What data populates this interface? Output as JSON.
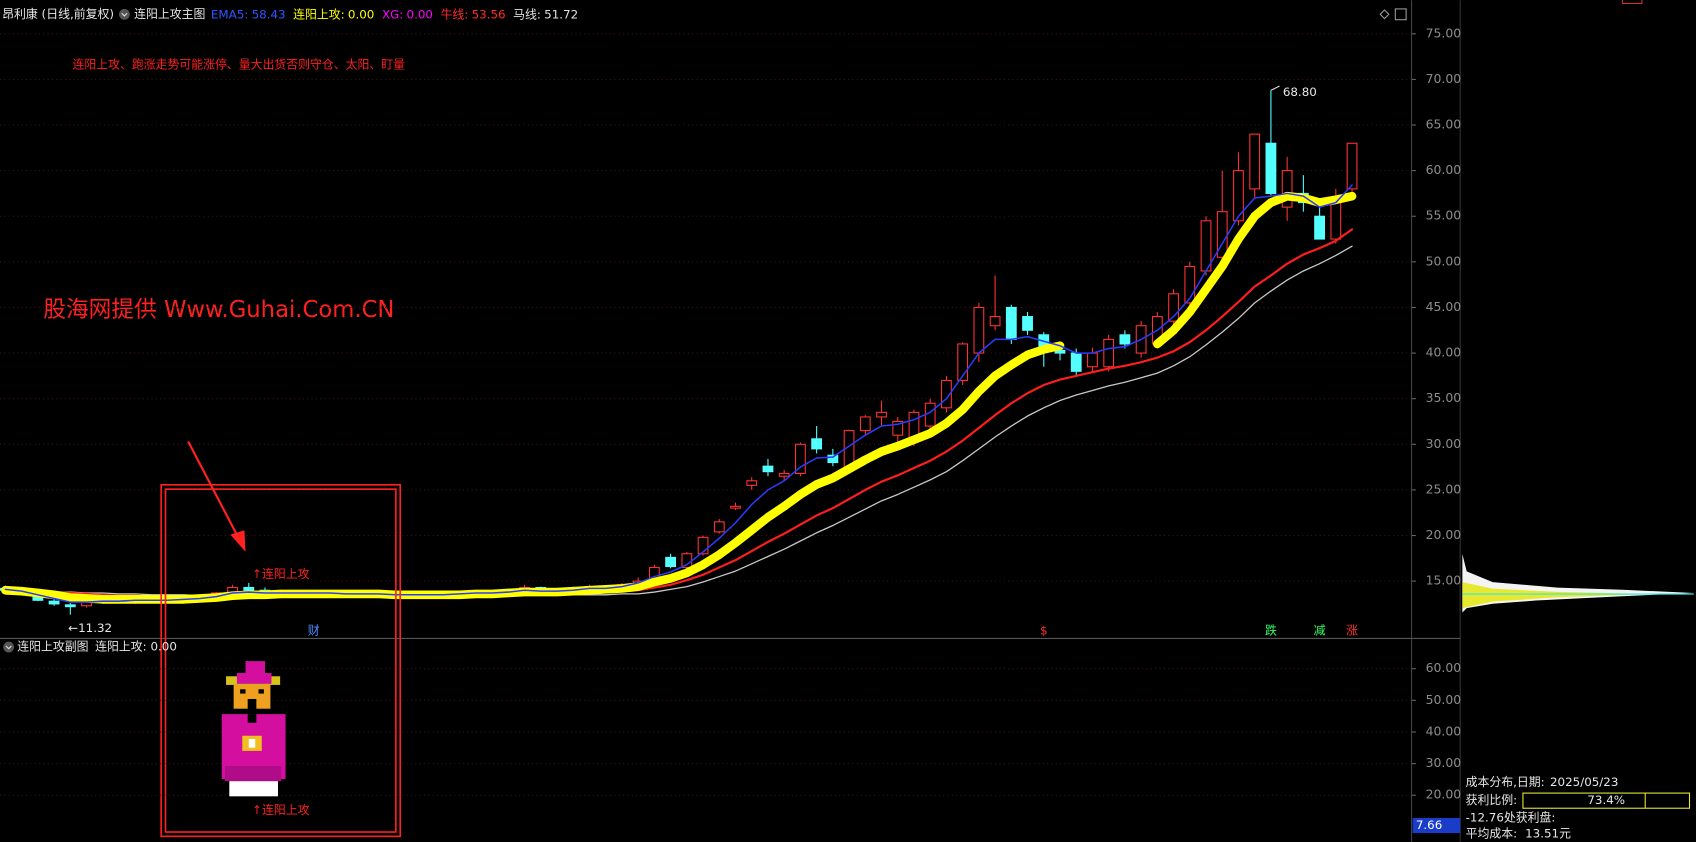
{
  "header": {
    "stock": "昂利康 (日线,前复权)",
    "indicator": "连阳上攻主图"
  },
  "chart_data": {
    "type": "candlestick",
    "readouts": [
      {
        "label": "EMA5:",
        "value": "58.43",
        "color": "#2f55ff"
      },
      {
        "label": "连阳上攻:",
        "value": "0.00",
        "color": "#ffff00"
      },
      {
        "label": "XG:",
        "value": "0.00",
        "color": "#ff00ff"
      },
      {
        "label": "牛线:",
        "value": "53.56",
        "color": "#ff2a2a"
      },
      {
        "label": "马线:",
        "value": "51.72",
        "color": "#e0e0e0"
      }
    ],
    "note": "连阳上攻、跑涨走势可能涨停、量大出货否则守仓、太阳、盯量",
    "watermark": "股海网提供 Www.Guhai.Com.CN",
    "signal_text": "↑连阳上攻",
    "high_label": "68.80",
    "low_label": "←11.32",
    "up_color": "#ff3232",
    "down_color": "#54ffff",
    "open": [
      14.2,
      14.0,
      13.5,
      12.8,
      12.4,
      12.3,
      12.7,
      12.9,
      12.8,
      13.0,
      12.9,
      12.8,
      13.1,
      13.2,
      13.7,
      14.3,
      14.0,
      13.6,
      13.8,
      13.7,
      13.6,
      13.7,
      13.5,
      13.6,
      13.5,
      13.4,
      13.5,
      13.6,
      13.5,
      13.7,
      13.8,
      13.6,
      14.0,
      14.3,
      13.8,
      14.0,
      14.2,
      14.4,
      14.3,
      14.6,
      15.0,
      17.6,
      16.5,
      18.0,
      20.4,
      23.0,
      25.5,
      27.6,
      26.5,
      26.8,
      30.6,
      28.8,
      27.5,
      31.5,
      33.0,
      31.0,
      30.5,
      32.0,
      34.0,
      37.0,
      40.0,
      43.0,
      45.0,
      44.0,
      42.0,
      40.3,
      40.0,
      38.5,
      38.5,
      42.0,
      40.0,
      41.0,
      43.5,
      45.5,
      49.0,
      50.5,
      54.5,
      58.0,
      63.0,
      56.0,
      57.5,
      55.0,
      52.5,
      58.0
    ],
    "high": [
      14.5,
      14.3,
      13.6,
      13.0,
      12.6,
      12.9,
      13.1,
      13.2,
      13.1,
      13.3,
      13.1,
      13.2,
      13.4,
      13.8,
      14.6,
      14.8,
      14.3,
      14.0,
      14.0,
      13.9,
      13.9,
      13.8,
      13.8,
      13.7,
      13.6,
      13.7,
      13.8,
      13.7,
      13.9,
      14.0,
      13.9,
      14.2,
      14.6,
      14.4,
      14.2,
      14.4,
      14.6,
      14.5,
      14.8,
      15.4,
      16.8,
      18.0,
      18.2,
      20.0,
      21.8,
      23.6,
      26.4,
      28.4,
      27.2,
      30.2,
      32.0,
      29.5,
      31.6,
      33.2,
      34.8,
      33.0,
      33.8,
      35.0,
      37.5,
      41.2,
      45.5,
      48.5,
      45.3,
      44.5,
      42.3,
      41.0,
      40.5,
      40.6,
      42.0,
      42.5,
      43.5,
      44.5,
      47.0,
      50.0,
      55.0,
      60.0,
      62.0,
      64.0,
      68.8,
      61.5,
      59.5,
      56.0,
      58.0,
      63.0
    ],
    "low": [
      13.8,
      13.5,
      12.8,
      12.3,
      11.32,
      12.1,
      12.5,
      12.6,
      12.5,
      12.8,
      12.6,
      12.6,
      12.9,
      13.0,
      13.5,
      13.8,
      13.5,
      13.4,
      13.5,
      13.4,
      13.4,
      13.3,
      13.3,
      13.3,
      13.2,
      13.3,
      13.4,
      13.3,
      13.4,
      13.5,
      13.4,
      13.5,
      13.9,
      13.7,
      13.7,
      13.9,
      14.0,
      14.1,
      14.2,
      14.4,
      14.9,
      16.4,
      16.3,
      17.8,
      20.2,
      22.8,
      25.0,
      26.5,
      26.0,
      26.5,
      29.0,
      27.6,
      27.0,
      31.0,
      32.0,
      29.5,
      29.8,
      31.5,
      33.5,
      36.5,
      39.0,
      42.5,
      41.0,
      42.0,
      38.5,
      39.2,
      37.5,
      38.0,
      38.0,
      40.5,
      39.5,
      40.5,
      43.0,
      45.0,
      48.5,
      50.0,
      54.0,
      57.0,
      57.3,
      54.5,
      55.5,
      52.5,
      52.0,
      57.5
    ],
    "close": [
      14.0,
      13.7,
      12.9,
      12.5,
      12.2,
      12.7,
      12.9,
      12.8,
      13.0,
      12.9,
      12.8,
      13.1,
      13.2,
      13.7,
      14.3,
      14.0,
      13.6,
      13.8,
      13.7,
      13.6,
      13.7,
      13.5,
      13.6,
      13.5,
      13.4,
      13.5,
      13.6,
      13.5,
      13.7,
      13.8,
      13.6,
      14.0,
      14.3,
      13.8,
      14.0,
      14.2,
      14.4,
      14.3,
      14.6,
      15.0,
      16.5,
      16.6,
      18.0,
      19.8,
      21.5,
      23.2,
      26.0,
      27.0,
      26.8,
      30.0,
      29.5,
      28.0,
      31.5,
      33.0,
      33.5,
      32.5,
      33.5,
      34.5,
      37.0,
      41.0,
      45.0,
      44.0,
      41.5,
      42.5,
      40.5,
      40.0,
      38.0,
      40.0,
      41.5,
      41.0,
      43.0,
      44.0,
      46.5,
      49.5,
      54.5,
      55.5,
      60.0,
      64.0,
      57.5,
      60.0,
      56.5,
      52.5,
      57.0,
      63.0
    ],
    "series": [
      {
        "color": "#c8c8c8",
        "width": 1.2,
        "values": [
          13.9,
          13.9,
          13.9,
          13.8,
          13.8,
          13.7,
          13.7,
          13.6,
          13.6,
          13.5,
          13.5,
          13.5,
          13.4,
          13.4,
          13.4,
          13.4,
          13.4,
          13.4,
          13.4,
          13.4,
          13.4,
          13.4,
          13.4,
          13.4,
          13.4,
          13.4,
          13.4,
          13.4,
          13.4,
          13.4,
          13.4,
          13.4,
          13.5,
          13.5,
          13.5,
          13.5,
          13.5,
          13.5,
          13.6,
          13.6,
          13.8,
          14.1,
          14.4,
          14.9,
          15.5,
          16.1,
          16.9,
          17.7,
          18.5,
          19.4,
          20.3,
          21.1,
          22.0,
          22.9,
          23.8,
          24.5,
          25.3,
          26.1,
          27.0,
          28.2,
          29.5,
          30.8,
          32.0,
          33.1,
          34.0,
          34.8,
          35.4,
          35.9,
          36.4,
          36.8,
          37.3,
          37.8,
          38.6,
          39.6,
          40.9,
          42.3,
          43.8,
          45.5,
          46.8,
          48.0,
          49.0,
          49.8,
          50.7,
          51.72
        ]
      },
      {
        "color": "#ff1e1e",
        "width": 2,
        "values": [
          14.0,
          14.0,
          13.9,
          13.8,
          13.7,
          13.6,
          13.5,
          13.4,
          13.4,
          13.3,
          13.3,
          13.3,
          13.3,
          13.3,
          13.4,
          13.4,
          13.4,
          13.4,
          13.4,
          13.4,
          13.5,
          13.5,
          13.5,
          13.5,
          13.5,
          13.5,
          13.5,
          13.5,
          13.5,
          13.5,
          13.5,
          13.6,
          13.6,
          13.6,
          13.7,
          13.7,
          13.8,
          13.8,
          13.9,
          14.0,
          14.3,
          14.6,
          15.1,
          15.7,
          16.5,
          17.3,
          18.3,
          19.3,
          20.2,
          21.2,
          22.2,
          23.0,
          24.0,
          25.0,
          25.9,
          26.6,
          27.4,
          28.2,
          29.2,
          30.4,
          31.8,
          33.2,
          34.5,
          35.6,
          36.5,
          37.1,
          37.5,
          37.9,
          38.3,
          38.6,
          39.0,
          39.5,
          40.2,
          41.2,
          42.5,
          44.0,
          45.6,
          47.3,
          48.5,
          49.8,
          50.8,
          51.5,
          52.3,
          53.56
        ]
      },
      {
        "color": "#ffff00",
        "width": 8,
        "values": [
          14.0,
          13.9,
          13.7,
          13.5,
          13.2,
          13.1,
          13.0,
          13.0,
          13.0,
          13.0,
          13.0,
          13.0,
          13.1,
          13.2,
          13.4,
          13.5,
          13.5,
          13.6,
          13.6,
          13.6,
          13.6,
          13.6,
          13.6,
          13.6,
          13.5,
          13.5,
          13.5,
          13.5,
          13.5,
          13.6,
          13.6,
          13.7,
          13.8,
          13.8,
          13.8,
          13.9,
          14.0,
          14.1,
          14.2,
          14.4,
          14.9,
          15.3,
          15.9,
          16.8,
          17.9,
          19.2,
          20.6,
          22.0,
          23.2,
          24.5,
          25.6,
          26.3,
          27.3,
          28.3,
          29.2,
          29.8,
          30.5,
          31.2,
          32.3,
          33.8,
          35.8,
          37.5,
          38.7,
          39.8,
          40.4,
          40.8,
          null,
          null,
          null,
          null,
          null,
          41.0,
          42.5,
          44.5,
          47.0,
          49.5,
          52.5,
          55.0,
          56.5,
          57.2,
          57.0,
          56.5,
          56.8,
          57.2
        ]
      },
      {
        "color": "#2a3cff",
        "width": 1.4,
        "values": [
          14.1,
          13.9,
          13.5,
          13.1,
          12.7,
          12.7,
          12.8,
          12.8,
          12.9,
          12.9,
          12.9,
          13.0,
          13.1,
          13.3,
          13.7,
          13.8,
          13.7,
          13.7,
          13.7,
          13.7,
          13.7,
          13.6,
          13.6,
          13.6,
          13.5,
          13.5,
          13.5,
          13.5,
          13.6,
          13.7,
          13.7,
          13.8,
          14.0,
          13.9,
          13.9,
          14.0,
          14.2,
          14.2,
          14.4,
          14.8,
          15.5,
          16.0,
          16.8,
          18.2,
          19.7,
          21.4,
          23.4,
          25.0,
          26.0,
          27.5,
          28.5,
          28.6,
          29.8,
          31.0,
          32.0,
          32.2,
          32.7,
          33.5,
          35.0,
          37.5,
          40.0,
          41.5,
          41.5,
          41.8,
          41.3,
          40.8,
          40.0,
          40.0,
          40.5,
          40.7,
          41.5,
          42.5,
          44.0,
          46.0,
          49.0,
          52.0,
          55.0,
          57.0,
          57.2,
          57.5,
          57.2,
          56.0,
          56.5,
          58.43
        ]
      }
    ],
    "signals": [
      null,
      null,
      null,
      null,
      null,
      null,
      null,
      null,
      null,
      null,
      null,
      null,
      null,
      null,
      null,
      null,
      null,
      null,
      null,
      {
        "text": "财",
        "color": "#4d8dff"
      },
      null,
      null,
      null,
      null,
      null,
      null,
      null,
      null,
      null,
      null,
      null,
      null,
      null,
      null,
      null,
      null,
      null,
      null,
      null,
      null,
      null,
      null,
      null,
      null,
      null,
      null,
      null,
      null,
      null,
      null,
      null,
      null,
      null,
      null,
      null,
      null,
      null,
      null,
      null,
      null,
      null,
      null,
      null,
      null,
      {
        "text": "$",
        "color": "#ff3232"
      },
      null,
      null,
      null,
      null,
      null,
      null,
      null,
      null,
      null,
      null,
      null,
      null,
      null,
      {
        "text": "跌",
        "color": "#33ff66"
      },
      null,
      null,
      {
        "text": "减",
        "color": "#33ff66"
      },
      null,
      {
        "text": "涨",
        "color": "#ff3232"
      }
    ],
    "ylim": [
      8.72,
      76.07
    ],
    "yticks": [
      {
        "value": 15,
        "label": "15.00"
      },
      {
        "value": 20,
        "label": "20.00"
      },
      {
        "value": 25,
        "label": "25.00"
      },
      {
        "value": 30,
        "label": "30.00"
      },
      {
        "value": 35,
        "label": "35.00"
      },
      {
        "value": 40,
        "label": "40.00"
      },
      {
        "value": 45,
        "label": "45.00"
      },
      {
        "value": 50,
        "label": "50.00"
      },
      {
        "value": 55,
        "label": "55.00"
      },
      {
        "value": 60,
        "label": "60.00"
      },
      {
        "value": 65,
        "label": "65.00"
      },
      {
        "value": 70,
        "label": "70.00"
      },
      {
        "value": 75,
        "label": "75.00"
      }
    ],
    "grid": true
  },
  "subchart": {
    "title": "连阳上攻副图",
    "readout": "连阳上攻: 0.00",
    "signal_text": "↑连阳上攻",
    "cursor_label": "7.66",
    "ylim": [
      5.3,
      69.57
    ],
    "yticks": [
      {
        "value": 20,
        "label": "20.00"
      },
      {
        "value": 30,
        "label": "30.00"
      },
      {
        "value": 40,
        "label": "40.00"
      },
      {
        "value": 50,
        "label": "50.00"
      },
      {
        "value": 60,
        "label": "60.00"
      }
    ]
  },
  "chips": {
    "title": "成本分布,日期:",
    "date": "2025/05/23",
    "profit_title": "获利比例:",
    "profit": {
      "value": 73.4,
      "label": "73.4%",
      "xlim": [
        0,
        100
      ]
    },
    "profit_line": "-12.76处获利盘:",
    "avg_title": "平均成本:",
    "avg": "13.51元"
  }
}
